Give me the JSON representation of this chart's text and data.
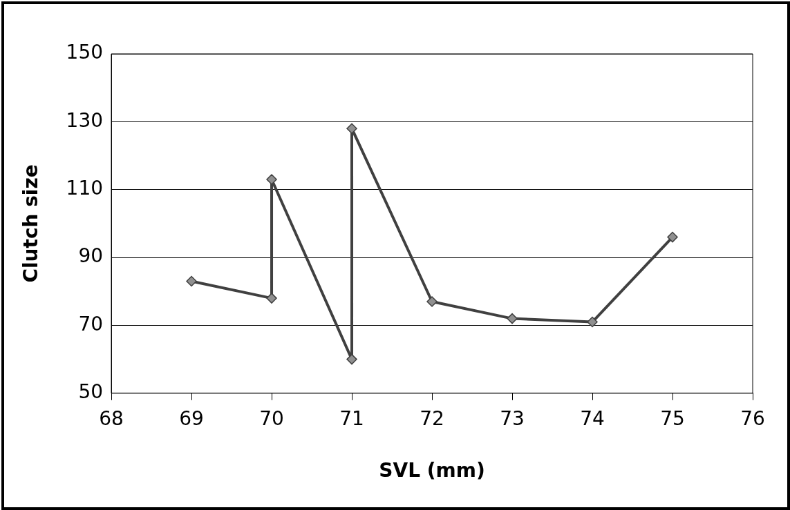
{
  "chart_data": {
    "type": "line",
    "xlabel": "SVL (mm)",
    "ylabel": "Clutch size",
    "x": [
      69,
      70,
      70,
      71,
      71,
      72,
      73,
      74,
      75
    ],
    "series": [
      {
        "color": "#404040",
        "values": [
          83,
          78,
          113,
          60,
          128,
          77,
          72,
          71,
          96
        ]
      }
    ],
    "xlim": [
      68,
      76
    ],
    "xticks": [
      68,
      69,
      70,
      71,
      72,
      73,
      74,
      75,
      76
    ],
    "ylim": [
      50,
      150
    ],
    "yticks": [
      50,
      70,
      90,
      110,
      130,
      150
    ],
    "grid": "y",
    "marker": "diamond",
    "line_style": "solid"
  }
}
